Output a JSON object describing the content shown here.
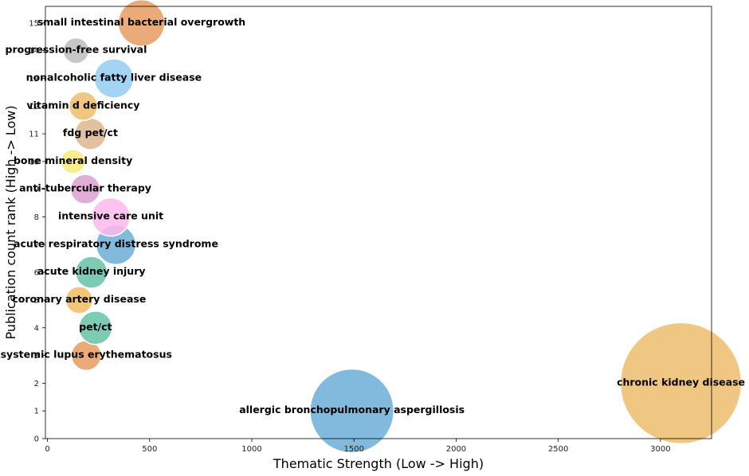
{
  "chart_data": {
    "type": "scatter",
    "title": "",
    "xlabel": "Thematic Strength (Low -> High)",
    "ylabel": "Publication count rank (High -> Low)",
    "xlim": [
      -10,
      3250
    ],
    "ylim": [
      0,
      15.6
    ],
    "xticks": [
      0,
      500,
      1000,
      1500,
      2000,
      2500,
      3000
    ],
    "yticks": [
      0,
      1,
      2,
      3,
      4,
      5,
      6,
      7,
      8,
      9,
      10,
      11,
      12,
      13,
      14,
      15
    ],
    "grid": false,
    "legend": "none",
    "points": [
      {
        "label": "allergic bronchopulmonary aspergillosis",
        "x": 1490,
        "y": 1,
        "size": 1490,
        "color": "#6baed6"
      },
      {
        "label": "chronic kidney disease",
        "x": 3100,
        "y": 2,
        "size": 3100,
        "color": "#ecbc6c"
      },
      {
        "label": "systemic lupus erythematosus",
        "x": 190,
        "y": 3,
        "size": 190,
        "color": "#e89c62"
      },
      {
        "label": "pet/ct",
        "x": 235,
        "y": 4,
        "size": 235,
        "color": "#66c2a5"
      },
      {
        "label": "coronary artery disease",
        "x": 155,
        "y": 5,
        "size": 155,
        "color": "#f0bd63"
      },
      {
        "label": "acute kidney injury",
        "x": 215,
        "y": 6,
        "size": 215,
        "color": "#66c2a5"
      },
      {
        "label": "acute respiratory distress syndrome",
        "x": 335,
        "y": 7,
        "size": 335,
        "color": "#6baed6"
      },
      {
        "label": "intensive care unit",
        "x": 310,
        "y": 8,
        "size": 310,
        "color": "#ffb8ec"
      },
      {
        "label": "anti-tubercular therapy",
        "x": 185,
        "y": 9,
        "size": 185,
        "color": "#dca0d0"
      },
      {
        "label": "bone mineral density",
        "x": 125,
        "y": 10,
        "size": 125,
        "color": "#f8ea7c"
      },
      {
        "label": "fdg pet/ct",
        "x": 210,
        "y": 11,
        "size": 210,
        "color": "#ddb690"
      },
      {
        "label": "vitamin d deficiency",
        "x": 175,
        "y": 12,
        "size": 175,
        "color": "#ecbc6c"
      },
      {
        "label": "nonalcoholic fatty liver disease",
        "x": 325,
        "y": 13,
        "size": 325,
        "color": "#93cdf2"
      },
      {
        "label": "progression-free survival",
        "x": 140,
        "y": 14,
        "size": 140,
        "color": "#bdbdbd"
      },
      {
        "label": "small intestinal bacterial overgrowth",
        "x": 460,
        "y": 15,
        "size": 460,
        "color": "#e89c62"
      }
    ]
  }
}
